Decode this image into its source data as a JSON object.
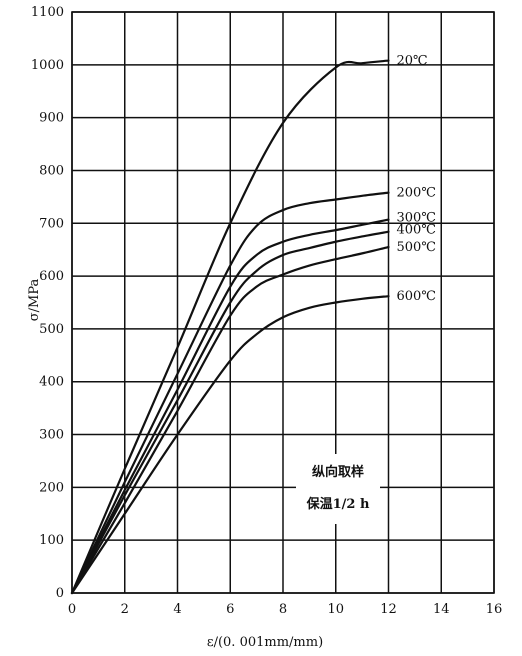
{
  "chart_data": {
    "type": "line",
    "xlabel": "ε/(0. 001mm/mm)",
    "ylabel": "σ/MPa",
    "xlim": [
      0,
      16
    ],
    "ylim": [
      0,
      1100
    ],
    "x_ticks": [
      "0",
      "2",
      "4",
      "6",
      "8",
      "10",
      "12",
      "14",
      "16"
    ],
    "y_ticks": [
      "0",
      "100",
      "200",
      "300",
      "400",
      "500",
      "600",
      "700",
      "800",
      "900",
      "1000",
      "1100"
    ],
    "grid": true,
    "annotation_lines": [
      "纵向取样",
      "保温1/2 h"
    ],
    "series": [
      {
        "name": "20℃",
        "points": [
          [
            0,
            0
          ],
          [
            2,
            235
          ],
          [
            4,
            465
          ],
          [
            6,
            700
          ],
          [
            8,
            890
          ],
          [
            10,
            995
          ],
          [
            11,
            1003
          ],
          [
            12,
            1008
          ]
        ]
      },
      {
        "name": "200℃",
        "points": [
          [
            0,
            0
          ],
          [
            2,
            210
          ],
          [
            4,
            415
          ],
          [
            6,
            620
          ],
          [
            7,
            695
          ],
          [
            8,
            725
          ],
          [
            9,
            738
          ],
          [
            10,
            745
          ],
          [
            11,
            752
          ],
          [
            12,
            758
          ]
        ]
      },
      {
        "name": "300℃",
        "points": [
          [
            0,
            0
          ],
          [
            2,
            195
          ],
          [
            4,
            385
          ],
          [
            6,
            580
          ],
          [
            7,
            640
          ],
          [
            8,
            665
          ],
          [
            9,
            678
          ],
          [
            10,
            687
          ],
          [
            11,
            697
          ],
          [
            12,
            707
          ]
        ]
      },
      {
        "name": "400℃",
        "points": [
          [
            0,
            0
          ],
          [
            2,
            185
          ],
          [
            4,
            365
          ],
          [
            6,
            550
          ],
          [
            7,
            610
          ],
          [
            8,
            640
          ],
          [
            9,
            653
          ],
          [
            10,
            665
          ],
          [
            11,
            675
          ],
          [
            12,
            684
          ]
        ]
      },
      {
        "name": "500℃",
        "points": [
          [
            0,
            0
          ],
          [
            2,
            170
          ],
          [
            4,
            345
          ],
          [
            6,
            525
          ],
          [
            7,
            580
          ],
          [
            8,
            603
          ],
          [
            9,
            620
          ],
          [
            10,
            632
          ],
          [
            11,
            643
          ],
          [
            12,
            655
          ]
        ]
      },
      {
        "name": "600℃",
        "points": [
          [
            0,
            0
          ],
          [
            2,
            150
          ],
          [
            4,
            300
          ],
          [
            6,
            440
          ],
          [
            7,
            490
          ],
          [
            8,
            522
          ],
          [
            9,
            540
          ],
          [
            10,
            550
          ],
          [
            11,
            557
          ],
          [
            12,
            562
          ]
        ]
      }
    ]
  }
}
